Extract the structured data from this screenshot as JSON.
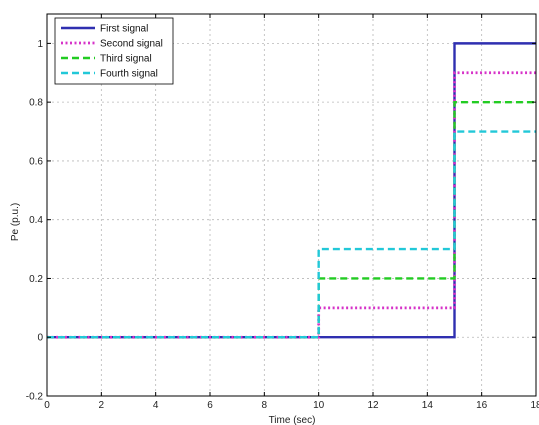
{
  "chart_data": {
    "type": "line",
    "xlabel": "Time (sec)",
    "ylabel": "Pe (p.u.)",
    "xlim": [
      0,
      18
    ],
    "ylim": [
      -0.2,
      1.1
    ],
    "x_ticks": [
      0,
      2,
      4,
      6,
      8,
      10,
      12,
      14,
      16,
      18
    ],
    "y_ticks": [
      -0.2,
      0,
      0.2,
      0.4,
      0.6,
      0.8,
      1
    ],
    "x_tick_labels": [
      "0",
      "2",
      "4",
      "6",
      "8",
      "10",
      "12",
      "14",
      "16",
      "18"
    ],
    "y_tick_labels": [
      "-0.2",
      "0",
      "0.2",
      "0.4",
      "0.6",
      "0.8",
      "1"
    ],
    "grid": true,
    "legend_position": "top-left",
    "series": [
      {
        "name": "First signal",
        "color": "#2f2fb0",
        "style": "solid",
        "x": [
          0,
          15,
          15,
          18
        ],
        "y": [
          0,
          0,
          1,
          1
        ]
      },
      {
        "name": "Second signal",
        "color": "#d633c8",
        "style": "dotted",
        "x": [
          0,
          10,
          10,
          15,
          15,
          18
        ],
        "y": [
          0,
          0,
          0.1,
          0.1,
          0.9,
          0.9
        ]
      },
      {
        "name": "Third signal",
        "color": "#22cc22",
        "style": "dashed",
        "x": [
          0,
          10,
          10,
          15,
          15,
          18
        ],
        "y": [
          0,
          0,
          0.2,
          0.2,
          0.8,
          0.8
        ]
      },
      {
        "name": "Fourth signal",
        "color": "#22c8d8",
        "style": "dashed",
        "x": [
          0,
          10,
          10,
          15,
          15,
          18
        ],
        "y": [
          0,
          0,
          0.3,
          0.3,
          0.7,
          0.7
        ]
      }
    ]
  }
}
